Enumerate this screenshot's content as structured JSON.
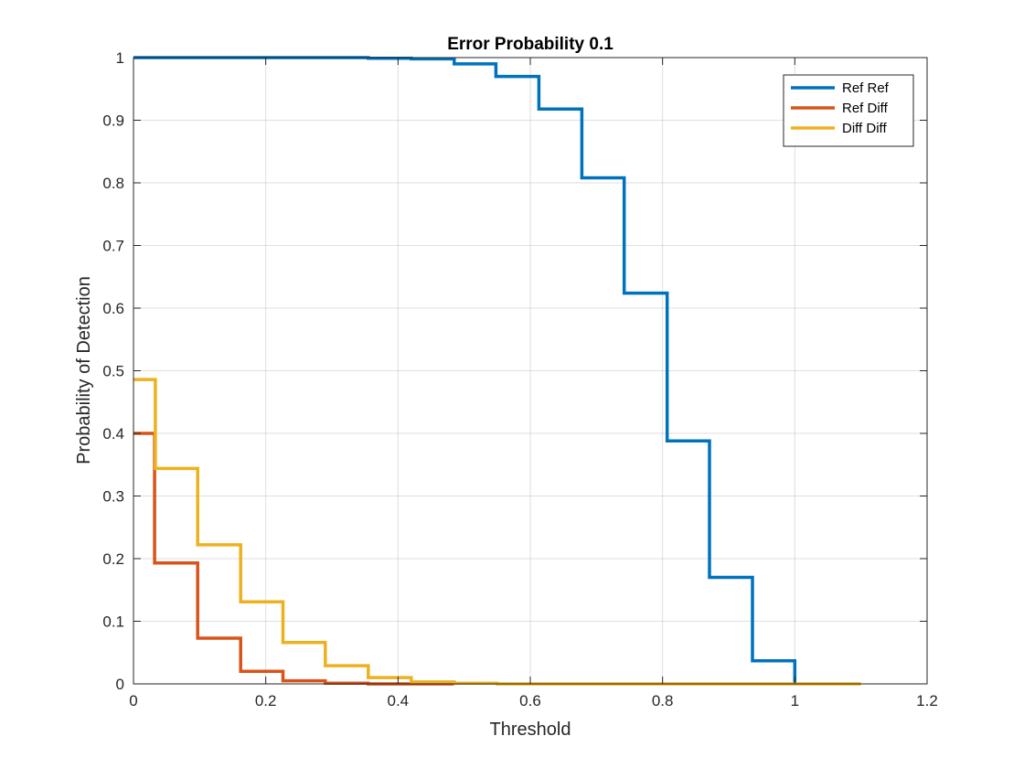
{
  "chart_data": {
    "type": "line",
    "step": true,
    "title": "Error Probability 0.1",
    "xlabel": "Threshold",
    "ylabel": "Probability of Detection",
    "xlim": [
      0,
      1.2
    ],
    "ylim": [
      0,
      1
    ],
    "xticks": [
      "0",
      "0.2",
      "0.4",
      "0.6",
      "0.8",
      "1",
      "1.2"
    ],
    "yticks": [
      "0",
      "0.1",
      "0.2",
      "0.3",
      "0.4",
      "0.5",
      "0.6",
      "0.7",
      "0.8",
      "0.9",
      "1"
    ],
    "grid": true,
    "legend_position": "top-right",
    "series": [
      {
        "name": "Ref Ref",
        "color": "#0072BD",
        "x": [
          0,
          0.035,
          0.097,
          0.16,
          0.225,
          0.29,
          0.355,
          0.42,
          0.485,
          0.548,
          0.613,
          0.678,
          0.742,
          0.807,
          0.871,
          0.936,
          1.0
        ],
        "y": [
          1.0,
          1.0,
          1.0,
          1.0,
          1.0,
          1.0,
          0.999,
          0.998,
          0.99,
          0.97,
          0.918,
          0.808,
          0.624,
          0.388,
          0.17,
          0.037,
          0
        ]
      },
      {
        "name": "Ref Diff",
        "color": "#D95319",
        "x": [
          0,
          0.032,
          0.097,
          0.162,
          0.226,
          0.29,
          0.355,
          0.42,
          0.485
        ],
        "y": [
          0.4,
          0.193,
          0.073,
          0.02,
          0.005,
          0.001,
          0.0,
          0.0,
          0.0
        ]
      },
      {
        "name": "Diff Diff",
        "color": "#EDB120",
        "x": [
          0,
          0.033,
          0.097,
          0.162,
          0.226,
          0.29,
          0.355,
          0.42,
          0.485,
          0.55,
          1.1
        ],
        "y": [
          0.486,
          0.344,
          0.222,
          0.131,
          0.066,
          0.029,
          0.01,
          0.003,
          0.001,
          0.0,
          0.0
        ]
      }
    ]
  }
}
